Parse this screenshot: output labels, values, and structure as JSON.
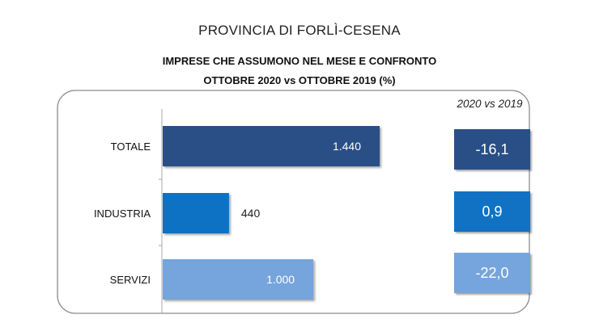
{
  "header": {
    "title": "PROVINCIA DI FORLÌ-CESENA",
    "chart_title_line1": "IMPRESE CHE ASSUMONO NEL MESE E CONFRONTO",
    "chart_title_line2": "OTTOBRE 2020 vs OTTOBRE 2019 (%)",
    "comparison_header": "2020 vs 2019"
  },
  "colors": {
    "totale": "#2a4f86",
    "industria": "#1172c4",
    "servizi": "#76a4dc",
    "frame": "#8c8c8c"
  },
  "chart_data": {
    "type": "bar",
    "orientation": "horizontal",
    "title": "IMPRESE CHE ASSUMONO NEL MESE E CONFRONTO OTTOBRE 2020 vs OTTOBRE 2019 (%)",
    "categories": [
      "TOTALE",
      "INDUSTRIA",
      "SERVIZI"
    ],
    "values": [
      1440,
      440,
      1000
    ],
    "value_labels": [
      "1.440",
      "440",
      "1.000"
    ],
    "value_label_inside": [
      true,
      false,
      true
    ],
    "bar_colors": [
      "#2a4f86",
      "#1172c4",
      "#76a4dc"
    ],
    "xlim": [
      0,
      1500
    ],
    "comparison": {
      "label": "2020 vs 2019",
      "values": [
        -16.1,
        0.9,
        -22.0
      ],
      "labels": [
        "-16,1",
        "0,9",
        "-22,0"
      ]
    },
    "grid": false,
    "legend": "none"
  }
}
